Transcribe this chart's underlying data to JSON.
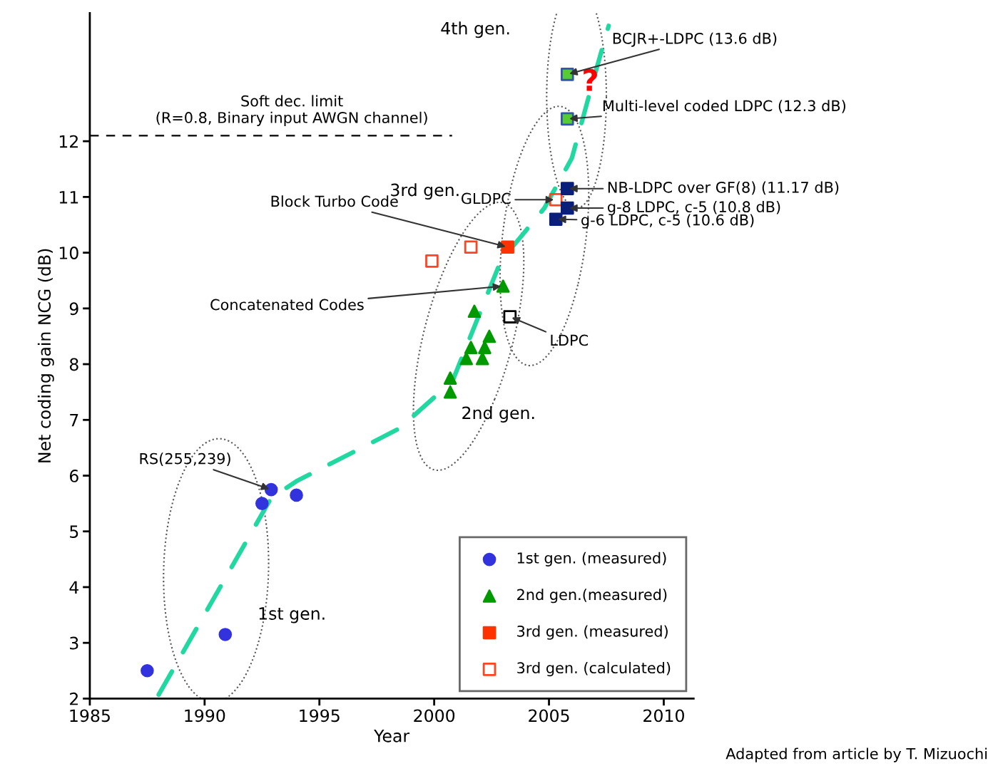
{
  "chart_data": {
    "type": "scatter",
    "xlabel": "Year",
    "ylabel": "Net coding gain NCG (dB)",
    "xlim": [
      1985,
      2011.3
    ],
    "ylim": [
      2,
      14.3
    ],
    "xticks": [
      1985,
      1990,
      1995,
      2000,
      2005,
      2010
    ],
    "yticks": [
      2,
      3,
      4,
      5,
      6,
      7,
      8,
      9,
      10,
      11,
      12
    ],
    "grid": false,
    "legend": "bottom right",
    "series": [
      {
        "name": "1st gen. (measured)",
        "color": "#3333dd",
        "marker": "circle",
        "x": [
          1987.5,
          1990.9,
          1992.5,
          1992.9,
          1994.0
        ],
        "values": [
          2.5,
          3.15,
          5.5,
          5.75,
          5.65
        ]
      },
      {
        "name": "2nd gen.(measured)",
        "color": "#009900",
        "marker": "triangle",
        "x": [
          2000.7,
          2000.7,
          2001.4,
          2001.6,
          2002.1,
          2002.2,
          2002.4,
          2001.75,
          2003.0
        ],
        "values": [
          7.5,
          7.75,
          8.1,
          8.3,
          8.1,
          8.3,
          8.5,
          8.95,
          9.4
        ]
      },
      {
        "name": "3rd gen. (measured)",
        "color": "#ff3300",
        "marker": "square",
        "x": [
          2003.2
        ],
        "values": [
          10.1
        ]
      },
      {
        "name": "3rd gen. (calculated)",
        "color": "#ff4422",
        "marker": "square",
        "x": [
          1999.9,
          2001.6,
          2005.3
        ],
        "values": [
          9.85,
          10.1,
          10.95
        ]
      },
      {
        "color": "#000000",
        "marker": "square",
        "x": [
          2003.3
        ],
        "values": [
          8.85
        ]
      },
      {
        "color": "#0a1f7a",
        "marker": "square",
        "x": [
          2005.8,
          2005.8,
          2005.3
        ],
        "values": [
          11.15,
          10.8,
          10.6
        ]
      },
      {
        "color": "#55cc33",
        "marker": "square",
        "x": [
          2005.8,
          2005.8
        ],
        "values": [
          13.2,
          12.4
        ]
      },
      {
        "type": "line",
        "color": "#20d8a0",
        "line_style": "dashed",
        "marker": "none",
        "x": [
          1988.0,
          1992.9,
          1994.0,
          1998.5,
          2000.8,
          2002.9,
          2004.8,
          2006.0,
          2007.0,
          2007.6
        ],
        "values": [
          2.07,
          5.6,
          5.9,
          6.85,
          7.7,
          9.85,
          10.8,
          11.7,
          13.2,
          14.07
        ]
      }
    ],
    "ref_lines": [
      {
        "axis": "y",
        "value": 12.1,
        "color": "#000000",
        "line_style": "dashed"
      }
    ],
    "annotations": [
      {
        "text": "BCJR+-LDPC (13.6 dB)",
        "x": 2005.8,
        "y": 13.2
      },
      {
        "text": "Multi-level coded LDPC (12.3 dB)",
        "x": 2005.8,
        "y": 12.4
      },
      {
        "text": "NB-LDPC over GF(8) (11.17 dB)",
        "x": 2005.8,
        "y": 11.15
      },
      {
        "text": "g-8 LDPC, c-5 (10.8 dB)",
        "x": 2005.8,
        "y": 10.8
      },
      {
        "text": "g-6 LDPC, c-5 (10.6 dB)",
        "x": 2005.3,
        "y": 10.6
      },
      {
        "text": "GLDPC",
        "x": 2005.3,
        "y": 10.95
      },
      {
        "text": "Block Turbo Code",
        "x": 2003.2,
        "y": 10.1
      },
      {
        "text": "Concatenated Codes",
        "x": 2003.0,
        "y": 9.4
      },
      {
        "text": "LDPC",
        "x": 2003.3,
        "y": 8.85
      },
      {
        "text": "RS(255,239)",
        "x": 1992.9,
        "y": 5.75
      },
      "?",
      "Soft dec. limit\n(R=0.8, Binary input AWGN channel)",
      "1st gen.",
      "2nd gen.",
      "3rd gen.",
      "4th gen.",
      "Adapted from article by T. Mizuochi"
    ]
  }
}
